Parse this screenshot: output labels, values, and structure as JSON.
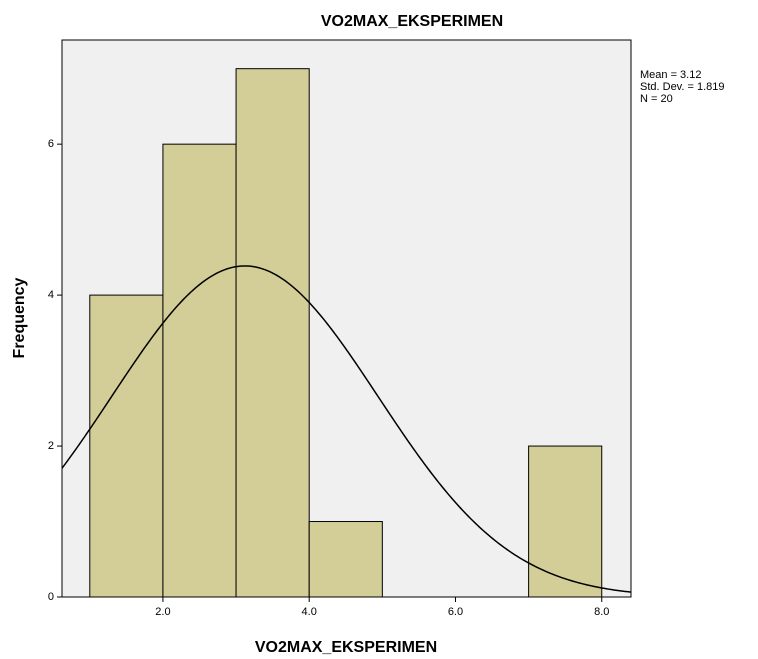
{
  "chart_data": {
    "type": "histogram",
    "title": "VO2MAX_EKSPERIMEN",
    "x_label": "VO2MAX_EKSPERIMEN",
    "y_label": "Frequency",
    "bins": [
      1,
      2,
      3,
      4,
      5,
      6,
      7,
      8
    ],
    "values": [
      4,
      6,
      7,
      1,
      0,
      0,
      2
    ],
    "color": "#d3ce97",
    "xlim": [
      0.62,
      8.4
    ],
    "ylim": [
      0,
      7.38
    ],
    "xticks": [
      {
        "value": 2,
        "label": "2.0"
      },
      {
        "value": 4,
        "label": "4.0"
      },
      {
        "value": 6,
        "label": "6.0"
      },
      {
        "value": 8,
        "label": "8.0"
      }
    ],
    "yticks": [
      0,
      2,
      4,
      6
    ],
    "normal_curve": {
      "mean": {
        "value": 3.12,
        "label": "Mean = 3.12"
      },
      "sd": {
        "value": 1.819,
        "label": "Std. Dev. = 1.819"
      },
      "n": {
        "value": 20,
        "label": "N = 20"
      }
    }
  }
}
